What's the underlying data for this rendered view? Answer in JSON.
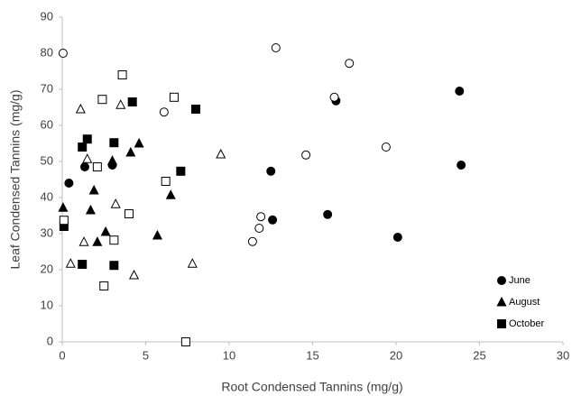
{
  "chart_data": {
    "type": "scatter",
    "xlabel": "Root Condensed Tannins (mg/g)",
    "ylabel": "Leaf Condensed Tannins (mg/g)",
    "xlim": [
      0,
      30
    ],
    "xticks": [
      0,
      5,
      10,
      15,
      20,
      25,
      30
    ],
    "ylim": [
      0,
      90
    ],
    "yticks": [
      0,
      10,
      20,
      30,
      40,
      50,
      60,
      70,
      80,
      90
    ],
    "grid": false,
    "legend": "lower right",
    "series": [
      {
        "name": "June",
        "marker": "circle",
        "filled": true,
        "color": "#000000",
        "x": [
          0.4,
          1.35,
          3.0,
          12.5,
          12.6,
          15.9,
          16.4,
          20.1,
          23.8,
          23.9
        ],
        "values": [
          44,
          48.5,
          49,
          47.3,
          33.8,
          35.3,
          66.8,
          29,
          69.5,
          49
        ]
      },
      {
        "name": "August",
        "marker": "triangle",
        "filled": true,
        "color": "#000000",
        "x": [
          0.05,
          1.7,
          1.9,
          2.1,
          2.6,
          3.0,
          4.1,
          4.6,
          5.7,
          6.5
        ],
        "values": [
          37.2,
          36.5,
          42,
          27.7,
          30.5,
          50.2,
          52.5,
          55,
          29.5,
          40.7
        ]
      },
      {
        "name": "October",
        "marker": "square",
        "filled": true,
        "color": "#000000",
        "x": [
          0.1,
          1.2,
          1.5,
          1.2,
          3.1,
          3.1,
          4.2,
          7.1,
          8.0
        ],
        "values": [
          32,
          54,
          56.2,
          21.5,
          55.2,
          21.2,
          66.5,
          47.3,
          64.5
        ]
      },
      {
        "marker": "circle",
        "filled": false,
        "color": "#000000",
        "x": [
          0.05,
          6.1,
          12.8,
          17.2,
          16.3,
          14.6,
          19.4,
          11.4,
          11.8,
          11.9
        ],
        "values": [
          80,
          63.7,
          81.5,
          77.2,
          67.8,
          51.8,
          54,
          27.8,
          31.5,
          34.7
        ]
      },
      {
        "marker": "triangle",
        "filled": false,
        "color": "#000000",
        "x": [
          1.1,
          1.5,
          0.5,
          1.3,
          3.2,
          3.5,
          4.3,
          9.5,
          7.8
        ],
        "values": [
          64.5,
          50.7,
          21.7,
          27.7,
          38.2,
          65.7,
          18.5,
          52,
          21.7
        ]
      },
      {
        "marker": "square",
        "filled": false,
        "color": "#000000",
        "x": [
          0.1,
          2.1,
          2.4,
          2.5,
          3.1,
          3.6,
          4.0,
          6.2,
          6.7,
          7.4
        ],
        "values": [
          33.7,
          48.5,
          67.2,
          15.5,
          28.2,
          74,
          35.5,
          44.5,
          67.8,
          0
        ]
      }
    ]
  }
}
